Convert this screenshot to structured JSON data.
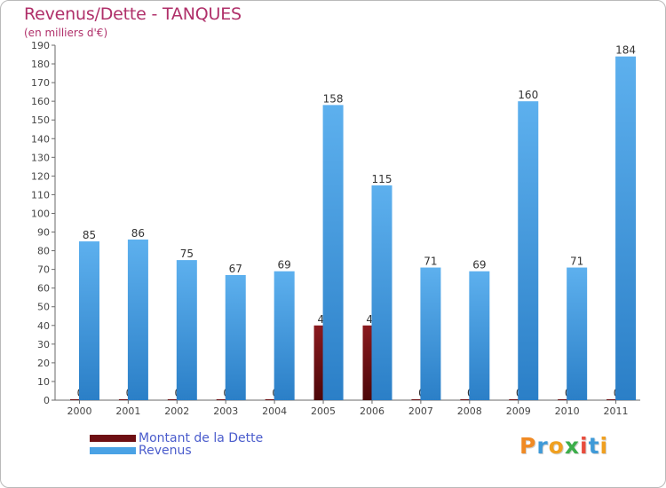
{
  "title": "Revenus/Dette - TANQUES",
  "subtitle": "(en milliers d'€)",
  "colors": {
    "dette": "#6e0f13",
    "revenus": "#4aa2e5",
    "revenus_dark": "#2b7fc7",
    "title": "#b0306a",
    "legend_text": "#4a5ccc"
  },
  "legend": [
    {
      "label": "Montant de la Dette",
      "color": "#6e0f13"
    },
    {
      "label": "Revenus",
      "color": "#4aa2e5"
    }
  ],
  "logo": {
    "text": "Proxiti",
    "letters": [
      {
        "ch": "P",
        "color": "#f08a24"
      },
      {
        "ch": "r",
        "color": "#3f9ad8"
      },
      {
        "ch": "o",
        "color": "#f0a020"
      },
      {
        "ch": "x",
        "color": "#3cae4a"
      },
      {
        "ch": "i",
        "color": "#e84c3d"
      },
      {
        "ch": "t",
        "color": "#3f9ad8"
      },
      {
        "ch": "i",
        "color": "#f0a020"
      }
    ]
  },
  "chart_data": {
    "type": "bar",
    "title": "Revenus/Dette - TANQUES",
    "subtitle": "(en milliers d'€)",
    "categories": [
      "2000",
      "2001",
      "2002",
      "2003",
      "2004",
      "2005",
      "2006",
      "2007",
      "2008",
      "2009",
      "2010",
      "2011"
    ],
    "series": [
      {
        "name": "Montant de la Dette",
        "values": [
          0,
          0,
          0,
          0,
          0,
          40,
          40,
          0,
          0,
          0,
          0,
          0
        ]
      },
      {
        "name": "Revenus",
        "values": [
          85,
          86,
          75,
          67,
          69,
          158,
          115,
          71,
          69,
          160,
          71,
          184
        ]
      }
    ],
    "ylim": [
      0,
      190
    ],
    "yticks": [
      0,
      10,
      20,
      30,
      40,
      50,
      60,
      70,
      80,
      90,
      100,
      110,
      120,
      130,
      140,
      150,
      160,
      170,
      180,
      190
    ],
    "grid": false,
    "legend_position": "bottom-left"
  }
}
